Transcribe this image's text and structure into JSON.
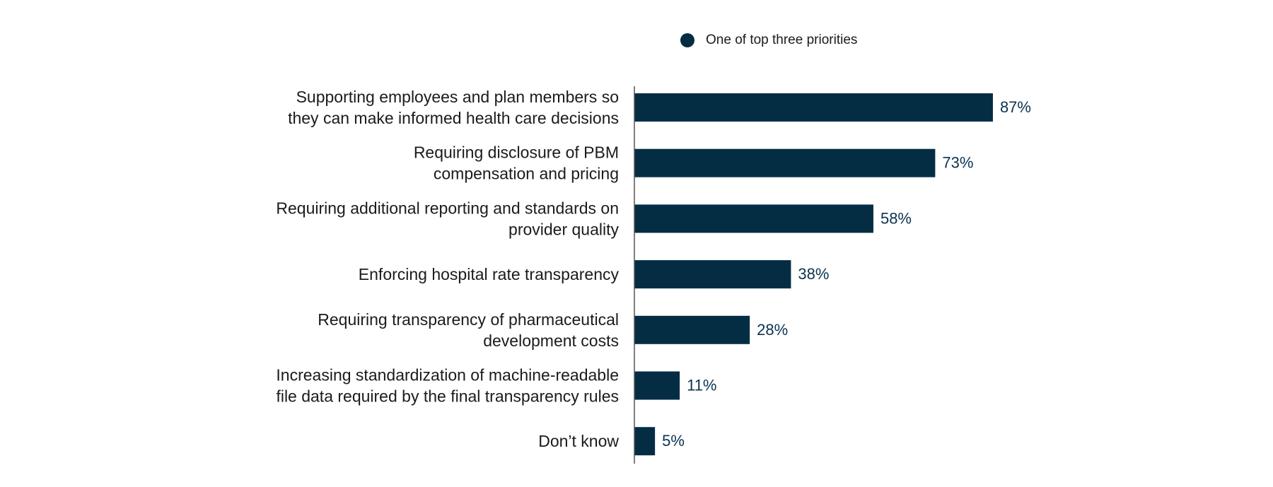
{
  "chart_data": {
    "type": "bar",
    "orientation": "horizontal",
    "categories": [
      [
        "Supporting employees and plan members so",
        "they can make informed health care decisions"
      ],
      [
        "Requiring disclosure of PBM",
        "compensation and pricing"
      ],
      [
        "Requiring additional reporting and standards on",
        "provider quality"
      ],
      [
        "Enforcing hospital rate transparency"
      ],
      [
        "Requiring transparency of pharmaceutical",
        "development costs"
      ],
      [
        "Increasing standardization of machine-readable",
        "file data required by the final transparency rules"
      ],
      [
        "Don’t know"
      ]
    ],
    "series": [
      {
        "name": "One of top three priorities",
        "values": [
          87,
          73,
          58,
          38,
          28,
          11,
          5
        ],
        "data_labels": [
          "87%",
          "73%",
          "58%",
          "38%",
          "28%",
          "11%",
          "5%"
        ]
      }
    ],
    "xlim": [
      0,
      100
    ],
    "grid": false,
    "legend_position": "top"
  },
  "colors": {
    "bar": "#042d44",
    "label_text": "#1b1b1b",
    "value_text": "#0b3350",
    "axis": "#555555"
  }
}
